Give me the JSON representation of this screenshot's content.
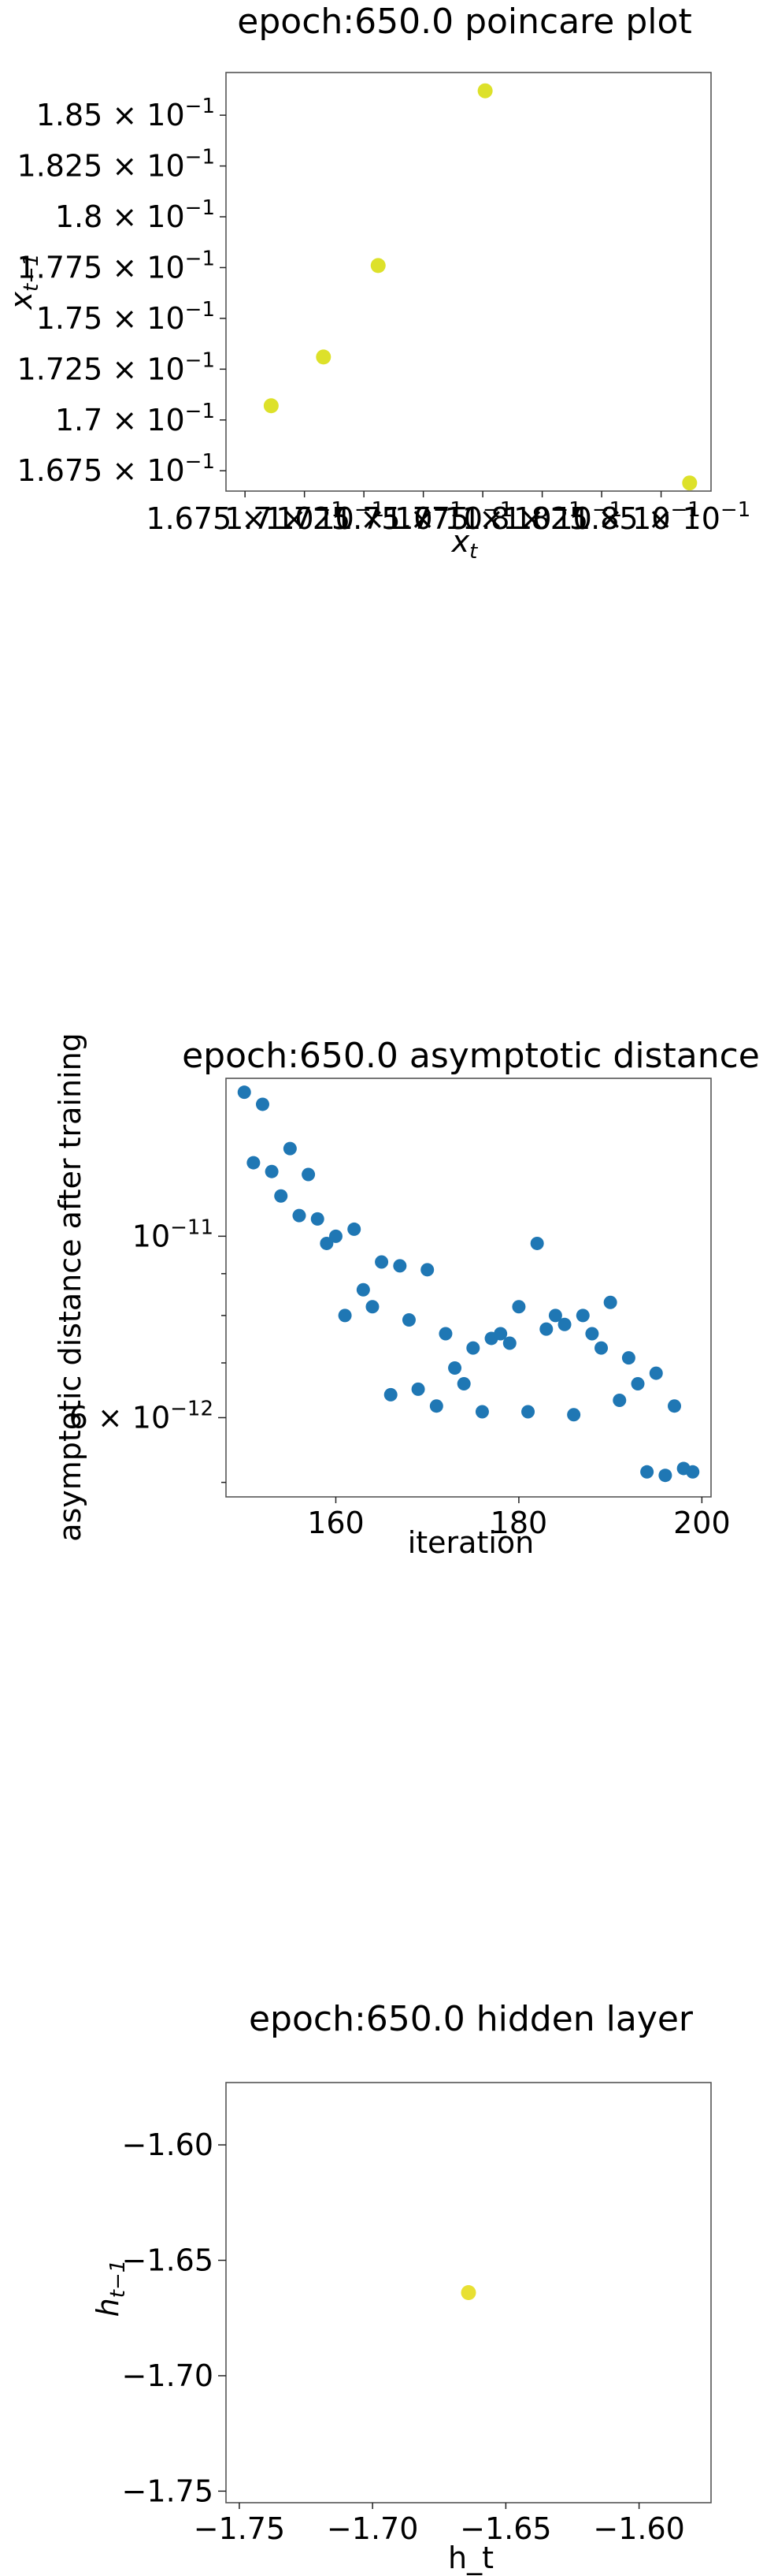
{
  "colors": {
    "poincare": "#dde12a",
    "distance": "#1f77b4",
    "hidden": "#e8e033"
  },
  "chart_data": [
    {
      "type": "scatter",
      "title": "epoch:650.0 poincare plot",
      "xlabel": "x_t",
      "ylabel": "x_{t-1}",
      "y_ticks": [
        {
          "v": 0.185,
          "m": "1.85"
        },
        {
          "v": 0.1825,
          "m": "1.825"
        },
        {
          "v": 0.18,
          "m": "1.8"
        },
        {
          "v": 0.1775,
          "m": "1.775"
        },
        {
          "v": 0.175,
          "m": "1.75"
        },
        {
          "v": 0.1725,
          "m": "1.725"
        },
        {
          "v": 0.17,
          "m": "1.7"
        },
        {
          "v": 0.1675,
          "m": "1.675"
        }
      ],
      "x_ticks": [
        {
          "v": 0.1675,
          "m": "1.675"
        },
        {
          "v": 0.17,
          "m": "1.7"
        },
        {
          "v": 0.1725,
          "m": "1.725"
        },
        {
          "v": 0.175,
          "m": "1.75"
        },
        {
          "v": 0.1775,
          "m": "1.775"
        },
        {
          "v": 0.18,
          "m": "1.8"
        },
        {
          "v": 0.1825,
          "m": "1.825"
        },
        {
          "v": 0.185,
          "m": "1.85"
        }
      ],
      "tick_exp": "-1",
      "xlim": [
        0.1667,
        0.1871
      ],
      "ylim": [
        0.1665,
        0.1871
      ],
      "points": [
        {
          "x": 0.1686,
          "y": 0.1707
        },
        {
          "x": 0.1708,
          "y": 0.1731
        },
        {
          "x": 0.1731,
          "y": 0.1776
        },
        {
          "x": 0.1776,
          "y": 0.1862
        },
        {
          "x": 0.1862,
          "y": 0.1669
        }
      ]
    },
    {
      "type": "scatter",
      "title": "epoch:650.0 asymptotic distance",
      "xlabel": "iteration",
      "ylabel": "asymptotic distance after training",
      "xlim": [
        148,
        201
      ],
      "ylim": [
        4.8e-12,
        1.56e-11
      ],
      "log_y": true,
      "x_ticks": [
        {
          "v": 160,
          "label": "160"
        },
        {
          "v": 180,
          "label": "180"
        },
        {
          "v": 200,
          "label": "200"
        }
      ],
      "y_major_ticks": [
        {
          "v": 1e-11,
          "m": "10",
          "e": "-11"
        },
        {
          "v": 6e-12,
          "m": "6",
          "e": "-12"
        }
      ],
      "y_minor_ticks": [
        5e-12,
        7e-12,
        8e-12,
        9e-12
      ],
      "x": [
        150,
        151,
        152,
        153,
        154,
        155,
        156,
        157,
        158,
        159,
        160,
        161,
        162,
        163,
        164,
        165,
        166,
        167,
        168,
        169,
        170,
        171,
        172,
        173,
        174,
        175,
        176,
        177,
        178,
        179,
        180,
        181,
        182,
        183,
        184,
        185,
        186,
        187,
        188,
        189,
        190,
        191,
        192,
        193,
        194,
        195,
        196,
        197,
        198,
        199
      ],
      "y": [
        1.5e-11,
        1.23e-11,
        1.45e-11,
        1.2e-11,
        1.12e-11,
        1.28e-11,
        1.06e-11,
        1.19e-11,
        1.05e-11,
        9.8e-12,
        1e-11,
        8e-12,
        1.02e-11,
        8.6e-12,
        8.2e-12,
        9.3e-12,
        6.4e-12,
        9.2e-12,
        7.9e-12,
        6.5e-12,
        9.1e-12,
        6.2e-12,
        7.6e-12,
        6.9e-12,
        6.6e-12,
        7.3e-12,
        6.1e-12,
        7.5e-12,
        7.6e-12,
        7.4e-12,
        8.2e-12,
        6.1e-12,
        9.8e-12,
        7.7e-12,
        8e-12,
        7.8e-12,
        6.05e-12,
        8e-12,
        7.6e-12,
        7.3e-12,
        8.3e-12,
        6.3e-12,
        7.1e-12,
        6.6e-12,
        5.15e-12,
        6.8e-12,
        5.1e-12,
        6.2e-12,
        5.2e-12,
        5.15e-12
      ]
    },
    {
      "type": "scatter",
      "title": "epoch:650.0 hidden layer",
      "xlabel": "h_t",
      "ylabel": "h_{t-1}",
      "xlim": [
        -1.755,
        -1.573
      ],
      "ylim": [
        -1.755,
        -1.573
      ],
      "x_ticks": [
        {
          "v": -1.75,
          "label": "−1.75"
        },
        {
          "v": -1.7,
          "label": "−1.70"
        },
        {
          "v": -1.65,
          "label": "−1.65"
        },
        {
          "v": -1.6,
          "label": "−1.60"
        }
      ],
      "y_ticks": [
        {
          "v": -1.6,
          "label": "−1.60"
        },
        {
          "v": -1.65,
          "label": "−1.65"
        },
        {
          "v": -1.7,
          "label": "−1.70"
        },
        {
          "v": -1.75,
          "label": "−1.75"
        }
      ],
      "points": [
        {
          "x": -1.664,
          "y": -1.664
        }
      ]
    }
  ]
}
